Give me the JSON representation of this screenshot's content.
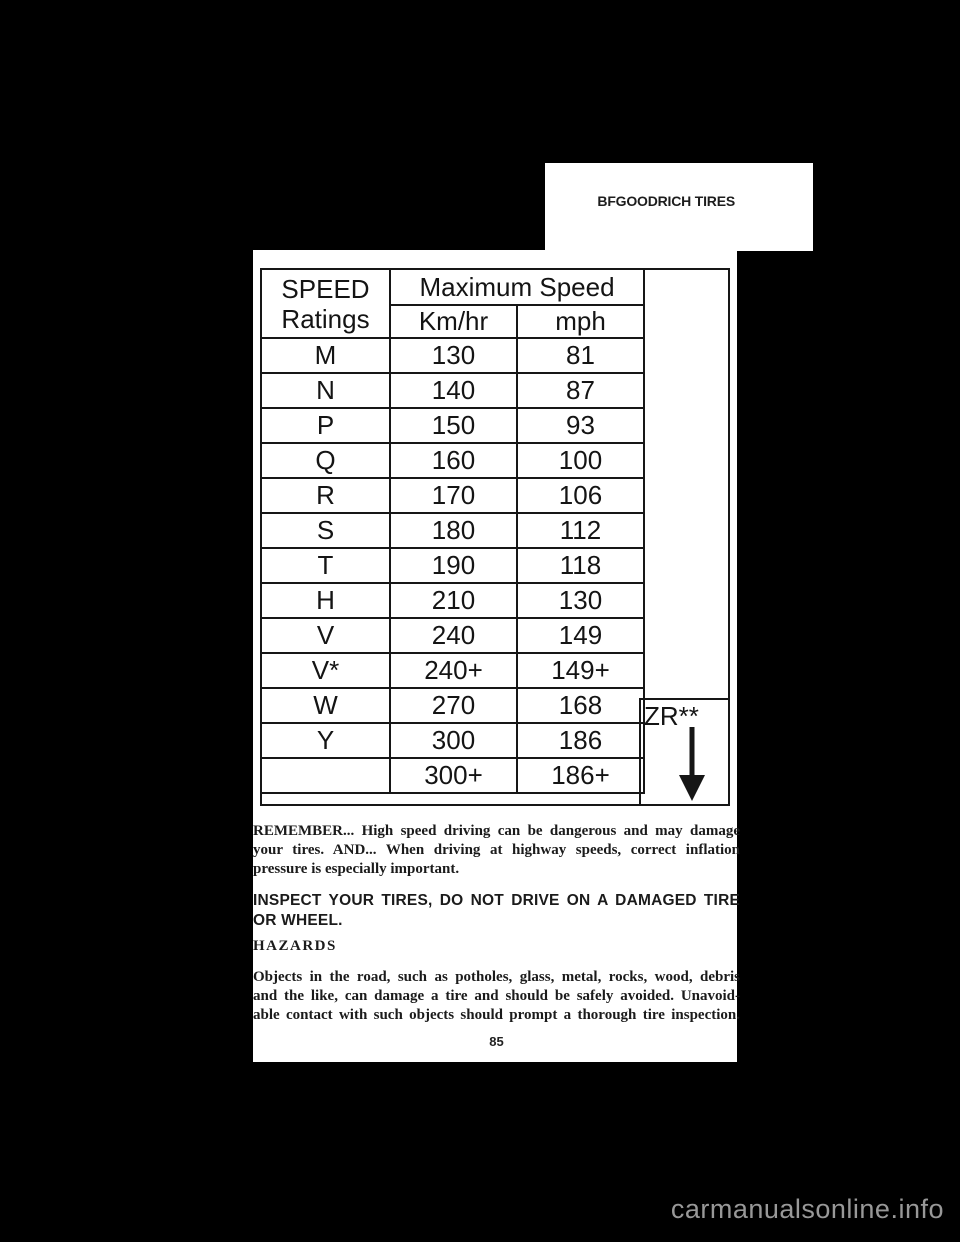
{
  "header": {
    "title": "BFGOODRICH TIRES"
  },
  "speed_table": {
    "ratings_header": [
      "SPEED",
      "Ratings"
    ],
    "max_speed_header": "Maximum Speed",
    "kmh_header": "Km/hr",
    "mph_header": "mph",
    "zr_label": "ZR**",
    "rows": [
      {
        "rating": "M",
        "kmh": "130",
        "mph": "81"
      },
      {
        "rating": "N",
        "kmh": "140",
        "mph": "87"
      },
      {
        "rating": "P",
        "kmh": "150",
        "mph": "93"
      },
      {
        "rating": "Q",
        "kmh": "160",
        "mph": "100"
      },
      {
        "rating": "R",
        "kmh": "170",
        "mph": "106"
      },
      {
        "rating": "S",
        "kmh": "180",
        "mph": "112"
      },
      {
        "rating": "T",
        "kmh": "190",
        "mph": "118"
      },
      {
        "rating": "H",
        "kmh": "210",
        "mph": "130"
      },
      {
        "rating": "V",
        "kmh": "240",
        "mph": "149"
      },
      {
        "rating": "V*",
        "kmh": "240+",
        "mph": "149+"
      },
      {
        "rating": "W",
        "kmh": "270",
        "mph": "168"
      },
      {
        "rating": "Y",
        "kmh": "300",
        "mph": "186"
      },
      {
        "rating": "",
        "kmh": "300+",
        "mph": "186+"
      }
    ]
  },
  "paragraphs": {
    "remember_lines": [
      "REMEMBER... High speed driving can be dangerous and may damage",
      "your tires. AND... When driving at highway speeds, correct inflation",
      "pressure is especially important."
    ],
    "inspect_lines": [
      "INSPECT YOUR TIRES, DO NOT DRIVE ON A DAMAGED TIRE",
      "OR WHEEL."
    ],
    "hazards_heading": "HAZARDS",
    "objects_lines": [
      "Objects in the road, such as potholes, glass, metal, rocks, wood, debris",
      "and the like, can damage a tire and should be safely avoided. Unavoid-",
      "able contact with such objects should prompt a thorough tire inspection."
    ]
  },
  "footer": {
    "page_number": "85"
  },
  "watermark": {
    "text": "carmanualsonline.info"
  },
  "colors": {
    "background": "#000000",
    "page": "#ffffff",
    "ink": "#1b1b1b",
    "table_border": "#161616",
    "watermark": "#989898"
  }
}
